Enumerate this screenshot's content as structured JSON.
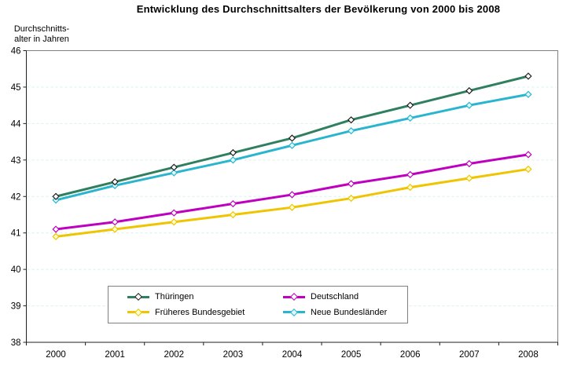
{
  "title": "Entwicklung des Durchschnittsalters der Bevölkerung von 2000 bis 2008",
  "y_axis": {
    "title_line1": "Durchschnitts-",
    "title_line2": "alter in Jahren"
  },
  "chart_data": {
    "type": "line",
    "title": "Entwicklung des Durchschnittsalters der Bevölkerung von 2000 bis 2008",
    "xlabel": "",
    "ylabel": "Durchschnittsalter in Jahren",
    "ylim": [
      38,
      46
    ],
    "ytick_step": 1,
    "yticks": [
      38,
      39,
      40,
      41,
      42,
      43,
      44,
      45,
      46
    ],
    "grid": "horizontal dashed light-cyan, plot border gray",
    "legend_position": "inside-bottom-center, 2x2 box",
    "categories": [
      "2000",
      "2001",
      "2002",
      "2003",
      "2004",
      "2005",
      "2006",
      "2007",
      "2008"
    ],
    "series": [
      {
        "name": "Thüringen",
        "color": "#308060",
        "marker_shape": "diamond",
        "marker_fill": "#ffffff",
        "marker_stroke": "#1f1f1f",
        "values": [
          42.0,
          42.4,
          42.8,
          43.2,
          43.6,
          44.1,
          44.5,
          44.9,
          45.3
        ]
      },
      {
        "name": "Deutschland",
        "color": "#bf00bf",
        "marker_shape": "diamond",
        "marker_fill": "#ffffff",
        "marker_stroke": "#bf00bf",
        "values": [
          41.1,
          41.3,
          41.55,
          41.8,
          42.05,
          42.35,
          42.6,
          42.9,
          43.15
        ]
      },
      {
        "name": "Früheres Bundesgebiet",
        "color": "#efc400",
        "marker_shape": "diamond",
        "marker_fill": "#ffffcc",
        "marker_stroke": "#efc400",
        "values": [
          40.9,
          41.1,
          41.3,
          41.5,
          41.7,
          41.95,
          42.25,
          42.5,
          42.75
        ]
      },
      {
        "name": "Neue Bundesländer",
        "color": "#2ab5cf",
        "marker_shape": "diamond",
        "marker_fill": "#dff8fc",
        "marker_stroke": "#2ab5cf",
        "values": [
          41.9,
          42.3,
          42.65,
          43.0,
          43.4,
          43.8,
          44.15,
          44.5,
          44.8
        ]
      }
    ],
    "draw_order": [
      2,
      1,
      3,
      0
    ],
    "legend_rows": [
      [
        0,
        1
      ],
      [
        2,
        3
      ]
    ]
  },
  "colors": {
    "background": "#ffffff",
    "grid": "#d4f1f1",
    "plot_border": "#808080",
    "axis": "#1f1f1f",
    "text": "#000000"
  }
}
